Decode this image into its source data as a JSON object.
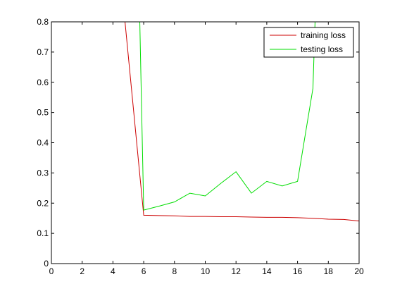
{
  "chart_data": {
    "type": "line",
    "title": "",
    "xlabel": "",
    "ylabel": "",
    "xlim": [
      0,
      20
    ],
    "ylim": [
      0,
      0.8
    ],
    "xticks": [
      0,
      2,
      4,
      6,
      8,
      10,
      12,
      14,
      16,
      18,
      20
    ],
    "yticks": [
      0,
      0.1,
      0.2,
      0.3,
      0.4,
      0.5,
      0.6,
      0.7,
      0.8
    ],
    "grid": false,
    "legend_position": "top-right",
    "series": [
      {
        "name": "training loss",
        "color": "#cc0000",
        "x": [
          4.5,
          6,
          7,
          8,
          9,
          10,
          11,
          12,
          13,
          14,
          15,
          16,
          17,
          18,
          19,
          20
        ],
        "y": [
          0.95,
          0.16,
          0.159,
          0.158,
          0.156,
          0.156,
          0.155,
          0.155,
          0.154,
          0.153,
          0.153,
          0.152,
          0.15,
          0.147,
          0.146,
          0.141
        ]
      },
      {
        "name": "testing loss",
        "color": "#00dd00",
        "x": [
          5.5,
          6,
          7,
          8,
          9,
          10,
          11,
          12,
          13,
          14,
          15,
          16,
          17,
          17.2
        ],
        "y": [
          1.4,
          0.177,
          0.19,
          0.204,
          0.233,
          0.224,
          0.265,
          0.304,
          0.233,
          0.272,
          0.257,
          0.272,
          0.58,
          0.9
        ]
      }
    ]
  }
}
